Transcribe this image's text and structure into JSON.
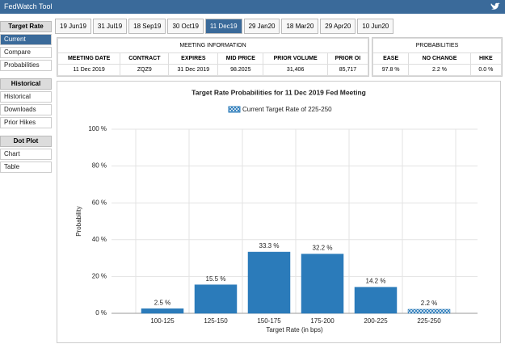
{
  "header": {
    "title": "FedWatch Tool"
  },
  "sidebar": [
    {
      "title": "Target Rate",
      "items": [
        "Current",
        "Compare",
        "Probabilities"
      ],
      "active": 0
    },
    {
      "title": "Historical",
      "items": [
        "Historical",
        "Downloads",
        "Prior Hikes"
      ]
    },
    {
      "title": "Dot Plot",
      "items": [
        "Chart",
        "Table"
      ]
    }
  ],
  "tabs": [
    "19 Jun19",
    "31 Jul19",
    "18 Sep19",
    "30 Oct19",
    "11 Dec19",
    "29 Jan20",
    "18 Mar20",
    "29 Apr20",
    "10 Jun20"
  ],
  "active_tab": 4,
  "meeting_info": {
    "title": "MEETING INFORMATION",
    "headers": [
      "MEETING DATE",
      "CONTRACT",
      "EXPIRES",
      "MID PRICE",
      "PRIOR VOLUME",
      "PRIOR OI"
    ],
    "row": [
      "11 Dec 2019",
      "ZQZ9",
      "31 Dec 2019",
      "98.2025",
      "31,406",
      "85,717"
    ]
  },
  "probabilities": {
    "title": "PROBABILITIES",
    "headers": [
      "EASE",
      "NO CHANGE",
      "HIKE"
    ],
    "row": [
      "97.8 %",
      "2.2 %",
      "0.0 %"
    ]
  },
  "chart_data": {
    "type": "bar",
    "title": "Target Rate Probabilities for 11 Dec 2019 Fed Meeting",
    "legend": "Current Target Rate of 225-250",
    "highlight_index": 5,
    "categories": [
      "100-125",
      "125-150",
      "150-175",
      "175-200",
      "200-225",
      "225-250"
    ],
    "values": [
      2.5,
      15.5,
      33.3,
      32.2,
      14.2,
      2.2
    ],
    "value_labels": [
      "2.5 %",
      "15.5 %",
      "33.3 %",
      "32.2 %",
      "14.2 %",
      "2.2 %"
    ],
    "color": "#2b7bba",
    "xlabel": "Target Rate (in bps)",
    "ylabel": "Probability",
    "ylim": [
      0,
      100
    ],
    "yticks": [
      {
        "value": 0,
        "label": "0 %"
      },
      {
        "value": 20,
        "label": "20 %"
      },
      {
        "value": 40,
        "label": "40 %"
      },
      {
        "value": 60,
        "label": "60 %"
      },
      {
        "value": 80,
        "label": "80 %"
      },
      {
        "value": 100,
        "label": "100 %"
      }
    ],
    "grid": true
  }
}
